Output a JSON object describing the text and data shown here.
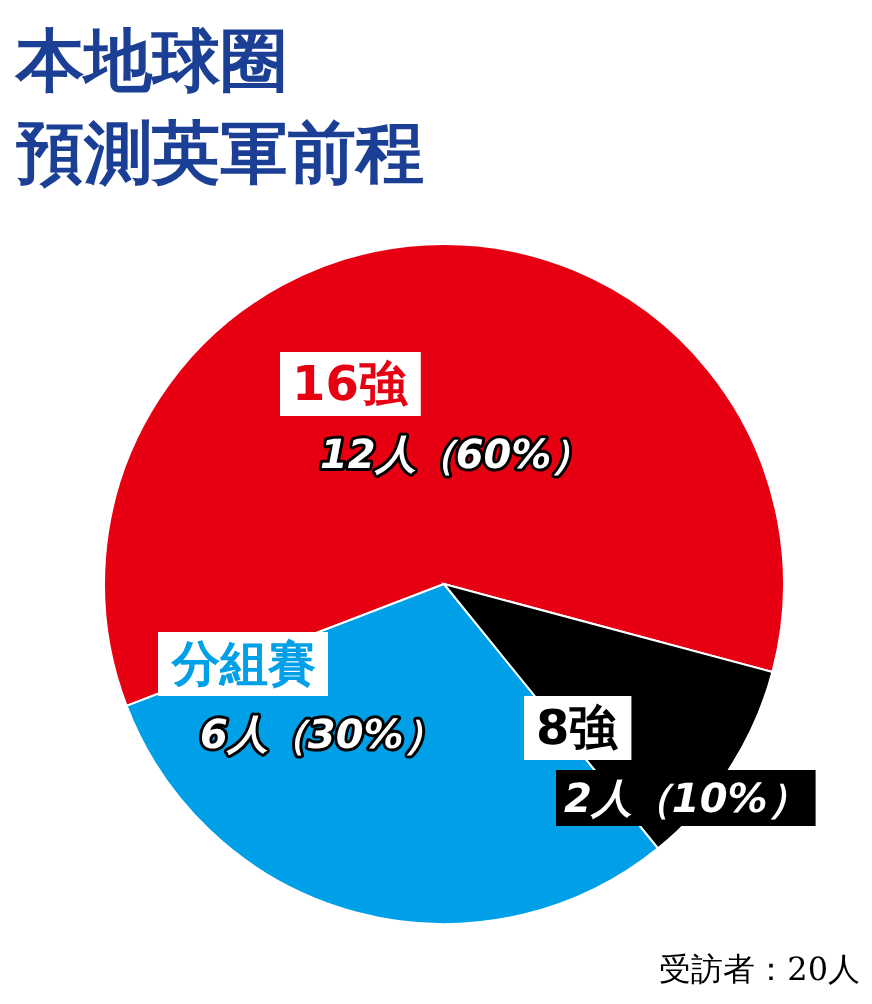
{
  "chart_data": {
    "type": "pie",
    "title": "本地球圈",
    "subtitle": "預測英軍前程",
    "categories": [
      "16強",
      "分組賽",
      "8強"
    ],
    "values": [
      12,
      6,
      2
    ],
    "value_labels": [
      "12人（60%）",
      "6人（30%）",
      "2人（10%）"
    ],
    "colors": [
      "#e60012",
      "#00a0e9",
      "#000000"
    ],
    "annotations": [
      "受訪者：20人"
    ]
  }
}
